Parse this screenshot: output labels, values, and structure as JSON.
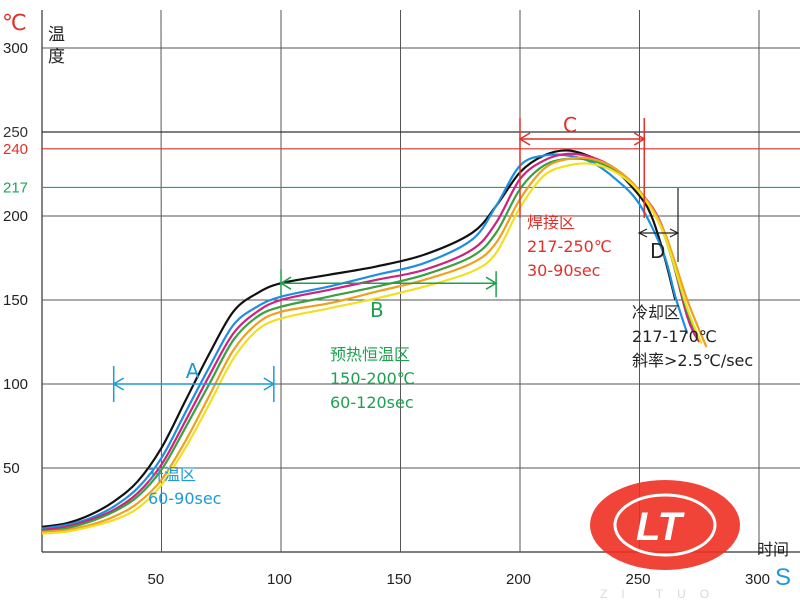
{
  "chart_data": {
    "type": "line",
    "yunit": "℃",
    "ylabel": "温度",
    "xlabel": "时间",
    "xunit": "S",
    "xlim": [
      0,
      320
    ],
    "ylim": [
      0,
      300
    ],
    "xticks": [
      50,
      100,
      150,
      200,
      250,
      300
    ],
    "yticks": [
      50,
      100,
      150,
      200,
      250,
      300
    ],
    "reference_lines": [
      {
        "y": 250,
        "label": "250",
        "color": "#333333"
      },
      {
        "y": 240,
        "label": "240",
        "color": "#e0302a"
      },
      {
        "y": 217,
        "label": "217",
        "color": "#1aa85a"
      }
    ],
    "series": [
      {
        "color": "#111111",
        "x": [
          0,
          10,
          20,
          30,
          40,
          50,
          60,
          70,
          80,
          90,
          100,
          120,
          140,
          160,
          180,
          190,
          200,
          210,
          220,
          230,
          240,
          250,
          255,
          260,
          265
        ],
        "y": [
          15,
          17,
          22,
          30,
          42,
          62,
          90,
          118,
          143,
          154,
          160,
          165,
          170,
          177,
          190,
          206,
          226,
          236,
          239,
          235,
          227,
          212,
          200,
          178,
          150
        ]
      },
      {
        "color": "#1e8fe0",
        "x": [
          0,
          10,
          20,
          30,
          40,
          50,
          60,
          70,
          80,
          90,
          100,
          120,
          140,
          160,
          180,
          190,
          200,
          210,
          220,
          230,
          240,
          250,
          260,
          265,
          270
        ],
        "y": [
          14,
          16,
          20,
          27,
          38,
          56,
          83,
          110,
          135,
          146,
          152,
          158,
          165,
          172,
          186,
          206,
          230,
          236,
          236,
          232,
          222,
          207,
          178,
          152,
          130
        ]
      },
      {
        "color": "#d02080",
        "x": [
          0,
          10,
          20,
          30,
          40,
          50,
          60,
          70,
          80,
          90,
          100,
          120,
          140,
          160,
          180,
          190,
          200,
          210,
          220,
          230,
          240,
          250,
          260,
          270,
          275
        ],
        "y": [
          13,
          15,
          19,
          25,
          35,
          52,
          78,
          105,
          130,
          143,
          150,
          156,
          162,
          168,
          180,
          196,
          222,
          233,
          237,
          235,
          228,
          215,
          192,
          140,
          125
        ]
      },
      {
        "color": "#3aa040",
        "x": [
          0,
          10,
          20,
          30,
          40,
          50,
          60,
          70,
          80,
          90,
          100,
          120,
          140,
          160,
          180,
          190,
          200,
          210,
          220,
          230,
          240,
          250,
          260,
          270,
          275
        ],
        "y": [
          12,
          14,
          18,
          24,
          33,
          49,
          74,
          100,
          126,
          140,
          146,
          152,
          158,
          165,
          176,
          190,
          216,
          230,
          234,
          233,
          227,
          214,
          190,
          143,
          127
        ]
      },
      {
        "color": "#f0a020",
        "x": [
          0,
          10,
          20,
          30,
          40,
          50,
          60,
          70,
          80,
          90,
          100,
          120,
          140,
          160,
          180,
          190,
          200,
          210,
          220,
          230,
          240,
          250,
          260,
          270,
          278
        ],
        "y": [
          12,
          13,
          16,
          21,
          29,
          43,
          66,
          93,
          120,
          136,
          143,
          148,
          155,
          162,
          172,
          184,
          210,
          228,
          234,
          234,
          228,
          215,
          192,
          150,
          122
        ]
      },
      {
        "color": "#f2e020",
        "x": [
          0,
          10,
          20,
          30,
          40,
          50,
          60,
          70,
          80,
          90,
          100,
          120,
          140,
          160,
          180,
          190,
          200,
          210,
          220,
          230,
          240,
          250,
          260,
          270,
          276
        ],
        "y": [
          11,
          12,
          15,
          19,
          26,
          40,
          62,
          88,
          115,
          132,
          139,
          145,
          151,
          158,
          167,
          178,
          205,
          224,
          230,
          231,
          226,
          214,
          190,
          145,
          124
        ]
      }
    ],
    "zones": [
      {
        "label": "A",
        "x_start": 30,
        "x_end": 97,
        "y": 100,
        "color": "#1e9ad6",
        "text": [
          "升温区",
          "60-90sec"
        ]
      },
      {
        "label": "B",
        "x_start": 100,
        "x_end": 190,
        "y": 160,
        "color": "#1ea050",
        "text": [
          "预热恒温区",
          "150-200℃",
          "60-120sec"
        ]
      },
      {
        "label": "C",
        "x_start": 200,
        "x_end": 252,
        "y": 250,
        "color": "#e0302a",
        "text": [
          "焊接区",
          "217-250℃",
          "30-90sec"
        ]
      },
      {
        "label": "D",
        "x_start": 255,
        "x_end": 273,
        "y": 190,
        "color": "#222222",
        "text": [
          "冷却区",
          "217-170℃",
          "斜率>2.5℃/sec"
        ]
      }
    ]
  },
  "logo": {
    "text": "LT",
    "subtitle": "ZI TUO",
    "colors": {
      "ellipse": "#ee3024",
      "text": "#ffffff"
    }
  }
}
